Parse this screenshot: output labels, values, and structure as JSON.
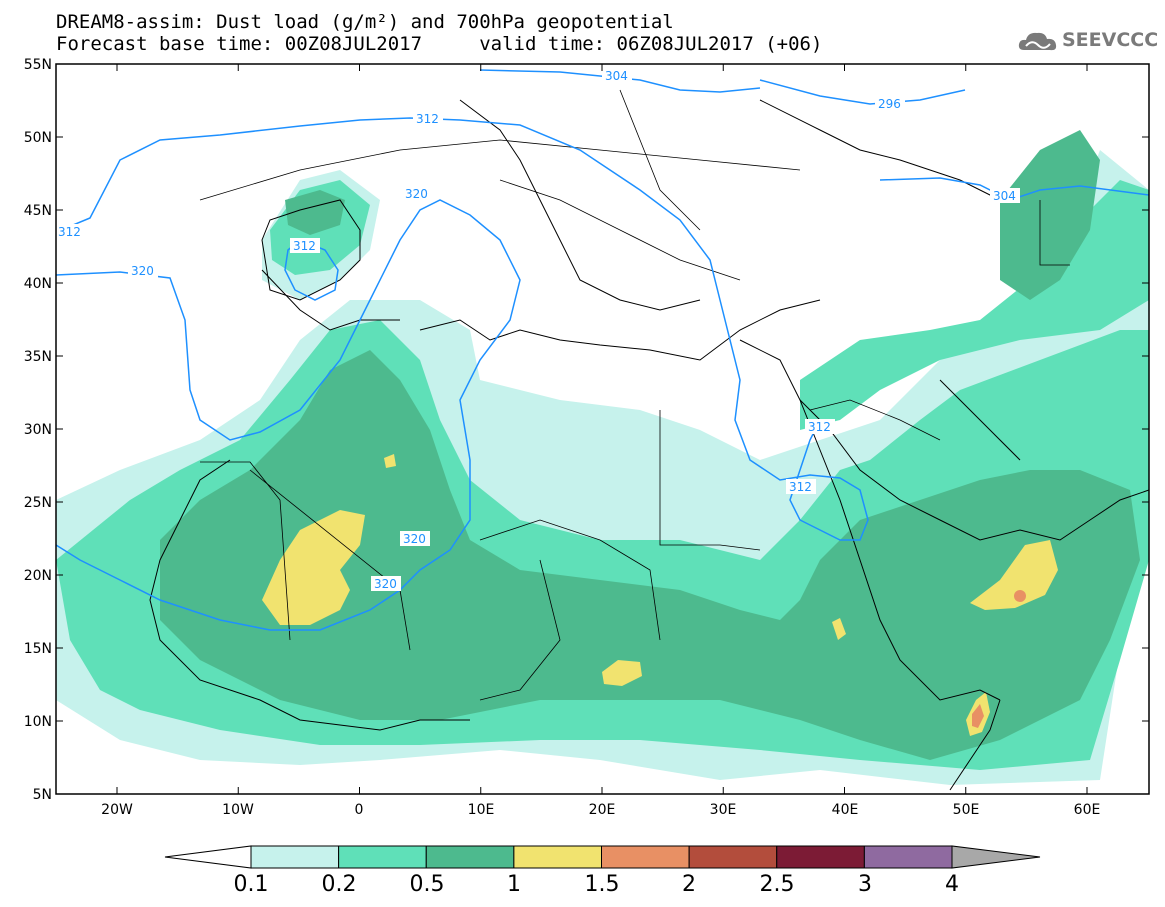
{
  "header": {
    "title_line1": "DREAM8-assim: Dust load (g/m²) and 700hPa geopotential",
    "title_line2": "Forecast base time: 00Z08JUL2017     valid time: 06Z08JUL2017 (+06)",
    "logo_text": "SEEVCCC",
    "logo_icon": "cloud-logo-icon"
  },
  "axes": {
    "lat_labels": [
      "55N",
      "50N",
      "45N",
      "40N",
      "35N",
      "30N",
      "25N",
      "20N",
      "15N",
      "10N",
      "5N"
    ],
    "lon_labels": [
      "20W",
      "10W",
      "0",
      "10E",
      "20E",
      "30E",
      "40E",
      "50E",
      "60E"
    ]
  },
  "contour_labels": [
    "304",
    "296",
    "312",
    "320",
    "312",
    "320",
    "320",
    "320",
    "312",
    "312",
    "304",
    "312"
  ],
  "legend": {
    "levels": [
      "0.1",
      "0.2",
      "0.5",
      "1",
      "1.5",
      "2",
      "2.5",
      "3",
      "4"
    ],
    "colors": [
      "#c6f2ec",
      "#5fe0b8",
      "#4dba8e",
      "#f1e36f",
      "#e89064",
      "#b34d3c",
      "#7c1b35",
      "#8f6aa0"
    ],
    "under_color": "#ffffff",
    "over_color": "#a8a8a8"
  },
  "colors": {
    "contour": "#1e90ff",
    "dust_light": "#c6f2ec",
    "dust_mid": "#5fe0b8",
    "dust_dark": "#4dba8e",
    "dust_yellow": "#f1e36f",
    "dust_orange": "#e89064"
  }
}
